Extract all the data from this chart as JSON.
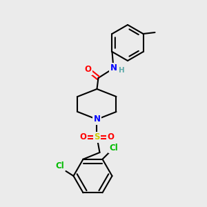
{
  "bg_color": "#ebebeb",
  "bond_color": "#000000",
  "bond_lw": 1.5,
  "atom_colors": {
    "N": "#0000ff",
    "O": "#ff0000",
    "S": "#cccc00",
    "Cl": "#00bb00",
    "H": "#5faaaa"
  },
  "font_size": 8.5,
  "font_size_small": 7.5
}
